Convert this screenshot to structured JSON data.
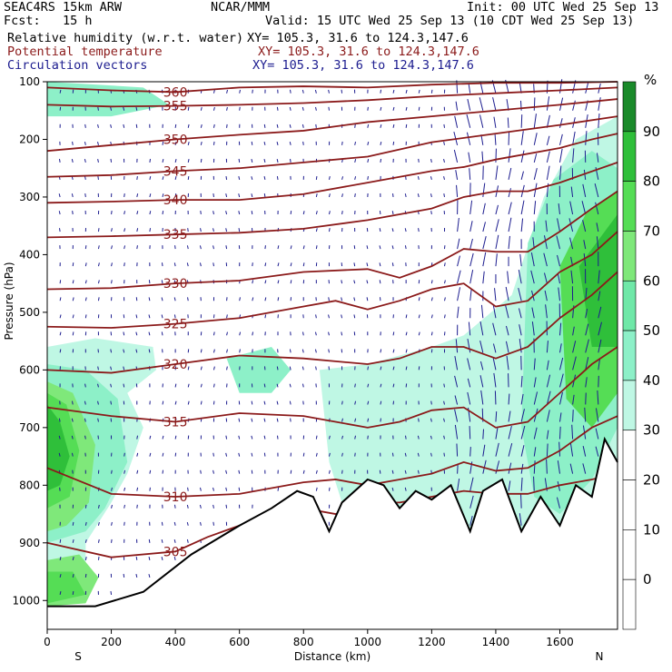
{
  "header": {
    "model": "SEAC4RS 15km ARW",
    "org": "NCAR/MMM",
    "init": "Init: 00 UTC Wed 25 Sep 13",
    "fcst": "Fcst:   15 h",
    "valid": "Valid: 15 UTC Wed 25 Sep 13 (10 CDT Wed 25 Sep 13)",
    "rh_label": "Relative humidity (w.r.t. water)",
    "rh_xy": "XY= 105.3, 31.6 to 124.3,147.6",
    "pt_label": "Potential temperature",
    "pt_xy": "XY= 105.3, 31.6 to 124.3,147.6",
    "cv_label": "Circulation vectors",
    "cv_xy": "XY= 105.3, 31.6 to 124.3,147.6"
  },
  "chart_data": {
    "type": "cross-section",
    "xlabel": "Distance (km)",
    "ylabel": "Pressure (hPa)",
    "x_ticks": [
      0,
      200,
      400,
      600,
      800,
      1000,
      1200,
      1400,
      1600
    ],
    "y_ticks": [
      100,
      200,
      300,
      400,
      500,
      600,
      700,
      800,
      900,
      1000
    ],
    "xlim": [
      0,
      1780
    ],
    "ylim": [
      1050,
      100
    ],
    "left_end_label": "S",
    "right_end_label": "N",
    "colorbar": {
      "unit": "%",
      "labels": [
        "90",
        "80",
        "70",
        "60",
        "50",
        "40",
        "30",
        "20",
        "10",
        "0"
      ],
      "colors": [
        "#1a8a2a",
        "#2fbf3a",
        "#55dd55",
        "#7fe87a",
        "#6fe8a8",
        "#8df0c8",
        "#bff7e4",
        "#ffffff",
        "#ffffff",
        "#ffffff",
        "#ffffff"
      ]
    },
    "theta_contours": [
      {
        "label": "360",
        "points": [
          [
            0,
            110
          ],
          [
            200,
            115
          ],
          [
            400,
            118
          ],
          [
            600,
            110
          ],
          [
            800,
            108
          ],
          [
            1000,
            110
          ],
          [
            1200,
            105
          ],
          [
            1400,
            102
          ],
          [
            1600,
            102
          ],
          [
            1780,
            100
          ]
        ]
      },
      {
        "label": "355",
        "points": [
          [
            0,
            140
          ],
          [
            200,
            143
          ],
          [
            400,
            142
          ],
          [
            600,
            140
          ],
          [
            800,
            137
          ],
          [
            1000,
            132
          ],
          [
            1200,
            125
          ],
          [
            1400,
            120
          ],
          [
            1600,
            115
          ],
          [
            1780,
            110
          ]
        ]
      },
      {
        "label": "350",
        "points": [
          [
            0,
            220
          ],
          [
            200,
            210
          ],
          [
            400,
            200
          ],
          [
            600,
            192
          ],
          [
            800,
            185
          ],
          [
            1000,
            170
          ],
          [
            1200,
            160
          ],
          [
            1400,
            150
          ],
          [
            1600,
            140
          ],
          [
            1780,
            130
          ]
        ]
      },
      {
        "label": "345",
        "points": [
          [
            0,
            265
          ],
          [
            200,
            262
          ],
          [
            400,
            255
          ],
          [
            600,
            250
          ],
          [
            800,
            240
          ],
          [
            1000,
            230
          ],
          [
            1200,
            205
          ],
          [
            1400,
            190
          ],
          [
            1600,
            175
          ],
          [
            1780,
            160
          ]
        ]
      },
      {
        "label": "340",
        "points": [
          [
            0,
            310
          ],
          [
            200,
            308
          ],
          [
            400,
            305
          ],
          [
            600,
            305
          ],
          [
            800,
            295
          ],
          [
            1000,
            275
          ],
          [
            1200,
            255
          ],
          [
            1300,
            248
          ],
          [
            1400,
            235
          ],
          [
            1600,
            215
          ],
          [
            1700,
            200
          ],
          [
            1780,
            190
          ]
        ]
      },
      {
        "label": "335",
        "points": [
          [
            0,
            370
          ],
          [
            200,
            368
          ],
          [
            400,
            365
          ],
          [
            600,
            362
          ],
          [
            800,
            355
          ],
          [
            1000,
            340
          ],
          [
            1200,
            320
          ],
          [
            1300,
            300
          ],
          [
            1400,
            290
          ],
          [
            1500,
            290
          ],
          [
            1600,
            275
          ],
          [
            1780,
            240
          ]
        ]
      },
      {
        "label": "330",
        "points": [
          [
            0,
            460
          ],
          [
            200,
            458
          ],
          [
            400,
            450
          ],
          [
            600,
            445
          ],
          [
            800,
            430
          ],
          [
            1000,
            425
          ],
          [
            1100,
            440
          ],
          [
            1200,
            420
          ],
          [
            1300,
            390
          ],
          [
            1400,
            395
          ],
          [
            1500,
            395
          ],
          [
            1600,
            360
          ],
          [
            1700,
            320
          ],
          [
            1780,
            290
          ]
        ]
      },
      {
        "label": "325",
        "points": [
          [
            0,
            525
          ],
          [
            200,
            527
          ],
          [
            400,
            520
          ],
          [
            600,
            510
          ],
          [
            800,
            490
          ],
          [
            900,
            480
          ],
          [
            1000,
            495
          ],
          [
            1100,
            480
          ],
          [
            1200,
            460
          ],
          [
            1300,
            450
          ],
          [
            1400,
            490
          ],
          [
            1500,
            480
          ],
          [
            1600,
            430
          ],
          [
            1700,
            400
          ],
          [
            1780,
            360
          ]
        ]
      },
      {
        "label": "320",
        "points": [
          [
            0,
            600
          ],
          [
            200,
            605
          ],
          [
            400,
            590
          ],
          [
            600,
            575
          ],
          [
            800,
            580
          ],
          [
            900,
            585
          ],
          [
            1000,
            590
          ],
          [
            1100,
            580
          ],
          [
            1200,
            560
          ],
          [
            1300,
            560
          ],
          [
            1400,
            580
          ],
          [
            1500,
            560
          ],
          [
            1600,
            510
          ],
          [
            1700,
            470
          ],
          [
            1780,
            430
          ]
        ]
      },
      {
        "label": "315",
        "points": [
          [
            0,
            665
          ],
          [
            200,
            680
          ],
          [
            400,
            690
          ],
          [
            600,
            675
          ],
          [
            800,
            680
          ],
          [
            900,
            690
          ],
          [
            1000,
            700
          ],
          [
            1100,
            690
          ],
          [
            1200,
            670
          ],
          [
            1300,
            665
          ],
          [
            1400,
            700
          ],
          [
            1500,
            690
          ],
          [
            1600,
            640
          ],
          [
            1700,
            590
          ],
          [
            1780,
            560
          ]
        ]
      },
      {
        "label": "310",
        "points": [
          [
            0,
            770
          ],
          [
            200,
            815
          ],
          [
            400,
            820
          ],
          [
            600,
            815
          ],
          [
            800,
            795
          ],
          [
            900,
            790
          ],
          [
            1000,
            800
          ],
          [
            1100,
            790
          ],
          [
            1200,
            780
          ],
          [
            1300,
            760
          ],
          [
            1400,
            775
          ],
          [
            1500,
            770
          ],
          [
            1600,
            740
          ],
          [
            1700,
            700
          ],
          [
            1780,
            680
          ]
        ]
      },
      {
        "label": "305",
        "points": [
          [
            0,
            900
          ],
          [
            200,
            925
          ],
          [
            400,
            915
          ],
          [
            500,
            890
          ],
          [
            600,
            870
          ],
          [
            700,
            850
          ],
          [
            800,
            840
          ],
          [
            900,
            850
          ],
          [
            1000,
            830
          ],
          [
            1100,
            830
          ],
          [
            1200,
            820
          ],
          [
            1300,
            810
          ],
          [
            1400,
            815
          ],
          [
            1500,
            815
          ],
          [
            1600,
            800
          ],
          [
            1700,
            790
          ],
          [
            1780,
            780
          ]
        ]
      }
    ],
    "terrain_pressure": [
      [
        0,
        1010
      ],
      [
        150,
        1010
      ],
      [
        300,
        985
      ],
      [
        450,
        920
      ],
      [
        600,
        870
      ],
      [
        700,
        840
      ],
      [
        780,
        810
      ],
      [
        830,
        820
      ],
      [
        880,
        880
      ],
      [
        920,
        830
      ],
      [
        1000,
        790
      ],
      [
        1050,
        800
      ],
      [
        1100,
        840
      ],
      [
        1150,
        810
      ],
      [
        1200,
        825
      ],
      [
        1260,
        800
      ],
      [
        1320,
        880
      ],
      [
        1360,
        810
      ],
      [
        1420,
        790
      ],
      [
        1480,
        880
      ],
      [
        1540,
        820
      ],
      [
        1600,
        870
      ],
      [
        1650,
        800
      ],
      [
        1700,
        820
      ],
      [
        1740,
        720
      ],
      [
        1780,
        760
      ]
    ]
  }
}
